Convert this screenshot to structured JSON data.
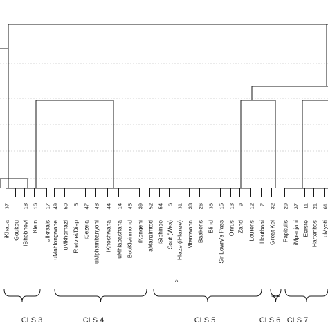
{
  "dendrogram": {
    "leaves": [
      {
        "num": "",
        "name": ""
      },
      {
        "num": "37",
        "name": "iKhaba"
      },
      {
        "num": "",
        "name": "Goukou"
      },
      {
        "num": "18",
        "name": "iBhobhoyi"
      },
      {
        "num": "16",
        "name": "Klein"
      },
      {
        "num": "17",
        "name": "Uilkraals"
      },
      {
        "num": "49",
        "name": "uMahlongwane"
      },
      {
        "num": "50",
        "name": "uMkhomazi"
      },
      {
        "num": "5",
        "name": "Rietvlei/Diep"
      },
      {
        "num": "47",
        "name": "iSezela"
      },
      {
        "num": "48",
        "name": "uMphambanyoni"
      },
      {
        "num": "44",
        "name": "iKhoshwana"
      },
      {
        "num": "14",
        "name": "uMhlabashana"
      },
      {
        "num": "45",
        "name": "Bot/Kleinmond"
      },
      {
        "num": "39",
        "name": "iKongeni"
      },
      {
        "num": "52",
        "name": "aManzimtoti"
      },
      {
        "num": "54",
        "name": "iSiphingo"
      },
      {
        "num": "6",
        "name": "Sout (Wes)"
      },
      {
        "num": "31",
        "name": "Hlaze (iHlanze)"
      },
      {
        "num": "33",
        "name": "Mtentwana"
      },
      {
        "num": "26",
        "name": "Baakens"
      },
      {
        "num": "36",
        "name": "Blind"
      },
      {
        "num": "15",
        "name": "Sir Lowry's Pass"
      },
      {
        "num": "13",
        "name": "Onrus"
      },
      {
        "num": "9",
        "name": "Zand"
      },
      {
        "num": "12",
        "name": "Lourens"
      },
      {
        "num": "7",
        "name": "Houtbaai"
      },
      {
        "num": "32",
        "name": "Great Kei"
      },
      {
        "num": "29",
        "name": "Papkuils"
      },
      {
        "num": "37",
        "name": "iMpenjani"
      },
      {
        "num": "11",
        "name": "Eerste"
      },
      {
        "num": "21",
        "name": "Hartenbos"
      },
      {
        "num": "61",
        "name": "uMyoti"
      }
    ],
    "clusters": [
      {
        "label": "CLS 3"
      },
      {
        "label": "CLS 4"
      },
      {
        "label": "CLS 5"
      },
      {
        "label": "CLS 6"
      },
      {
        "label": "CLS 7"
      }
    ],
    "extra_mark": "^",
    "colors": {
      "line": "#1a1a1a",
      "grid": "#c8c8c8",
      "text": "#222222"
    }
  }
}
